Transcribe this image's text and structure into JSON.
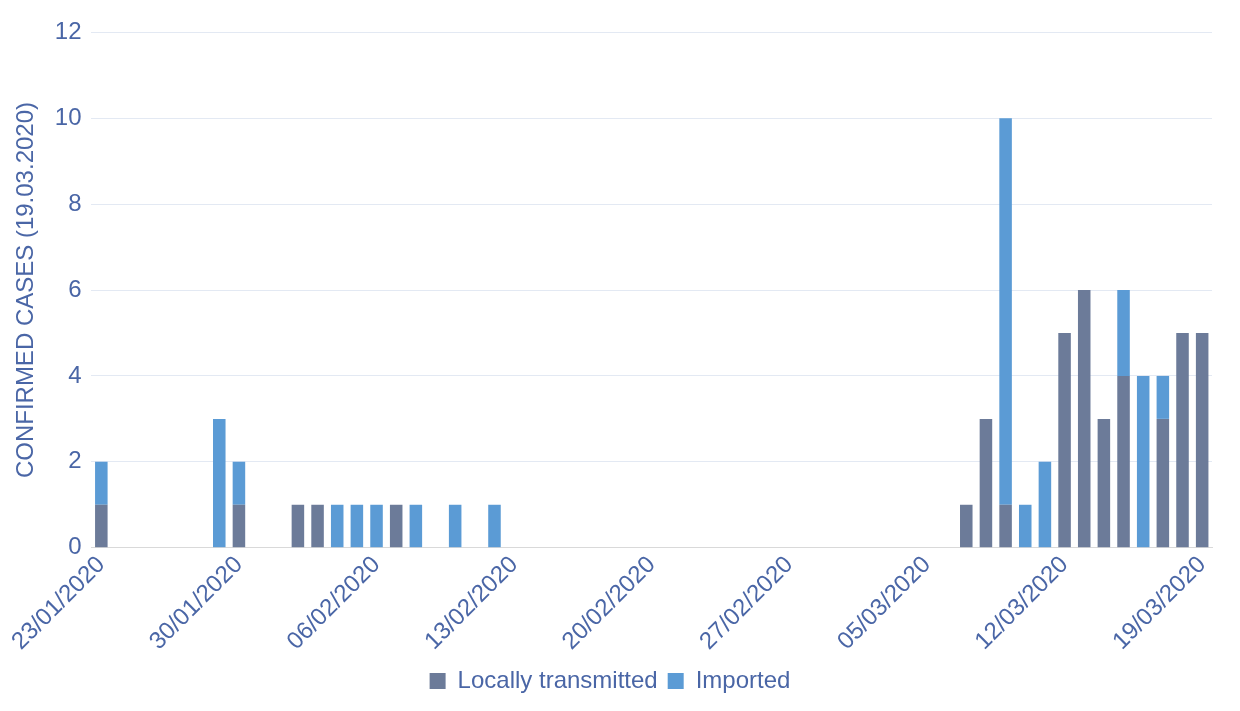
{
  "chart_data": {
    "type": "bar",
    "ylabel": "CONFIRMED CASES (19.03.2020)",
    "categories": [
      "23/01/2020",
      null,
      null,
      null,
      null,
      null,
      null,
      "30/01/2020",
      null,
      null,
      null,
      null,
      null,
      null,
      "06/02/2020",
      null,
      null,
      null,
      null,
      null,
      null,
      "13/02/2020",
      null,
      null,
      null,
      null,
      null,
      null,
      "20/02/2020",
      null,
      null,
      null,
      null,
      null,
      null,
      "27/02/2020",
      null,
      null,
      null,
      null,
      null,
      null,
      "05/03/2020",
      null,
      null,
      null,
      null,
      null,
      null,
      "12/03/2020",
      null,
      null,
      null,
      null,
      null,
      null,
      "19/03/2020"
    ],
    "series": [
      {
        "name": "Locally transmitted",
        "color": "#6c7b99",
        "values": [
          1,
          0,
          0,
          0,
          0,
          0,
          0,
          1,
          0,
          0,
          1,
          1,
          0,
          0,
          0,
          1,
          0,
          0,
          0,
          0,
          0,
          0,
          0,
          0,
          0,
          0,
          0,
          0,
          0,
          0,
          0,
          0,
          0,
          0,
          0,
          0,
          0,
          0,
          0,
          0,
          0,
          0,
          0,
          0,
          1,
          3,
          1,
          0,
          0,
          5,
          6,
          3,
          4,
          0,
          3,
          5,
          5
        ]
      },
      {
        "name": "Imported",
        "color": "#5b9bd5",
        "values": [
          1,
          0,
          0,
          0,
          0,
          0,
          3,
          1,
          0,
          0,
          0,
          0,
          1,
          1,
          1,
          0,
          1,
          0,
          1,
          0,
          1,
          0,
          0,
          0,
          0,
          0,
          0,
          0,
          0,
          0,
          0,
          0,
          0,
          0,
          0,
          0,
          0,
          0,
          0,
          0,
          0,
          0,
          0,
          0,
          0,
          0,
          9,
          1,
          2,
          0,
          0,
          0,
          2,
          4,
          1,
          0,
          0
        ]
      }
    ],
    "stacked": true,
    "ylim": [
      0,
      12
    ],
    "yticks": [
      0,
      2,
      4,
      6,
      8,
      10,
      12
    ],
    "grid": "y",
    "legend": "bottom"
  }
}
